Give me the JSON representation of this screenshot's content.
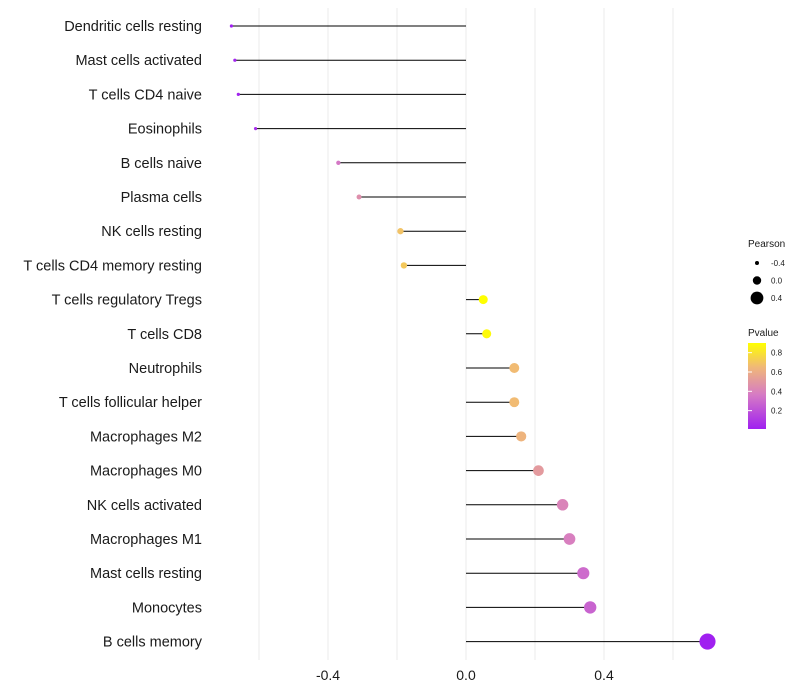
{
  "chart_data": {
    "type": "lollipop",
    "orientation": "horizontal",
    "categories": [
      "Dendritic cells resting",
      "Mast cells activated",
      "T cells CD4 naive",
      "Eosinophils",
      "B cells naive",
      "Plasma cells",
      "NK cells resting",
      "T cells CD4 memory resting",
      "T cells regulatory  Tregs ",
      "T cells CD8",
      "Neutrophils",
      "T cells follicular helper",
      "Macrophages M2",
      "Macrophages M0",
      "NK cells activated",
      "Macrophages M1",
      "Mast cells resting",
      "Monocytes",
      "B cells memory"
    ],
    "pearson": [
      -0.68,
      -0.67,
      -0.66,
      -0.61,
      -0.37,
      -0.31,
      -0.19,
      -0.18,
      0.05,
      0.06,
      0.14,
      0.14,
      0.16,
      0.21,
      0.28,
      0.3,
      0.34,
      0.36,
      0.7
    ],
    "pvalue": [
      0.01,
      0.02,
      0.02,
      0.05,
      0.35,
      0.45,
      0.68,
      0.7,
      0.9,
      0.88,
      0.65,
      0.65,
      0.62,
      0.5,
      0.4,
      0.38,
      0.3,
      0.27,
      0.01
    ],
    "x_ticks": [
      -0.4,
      0.0,
      0.4
    ],
    "x_tick_labels": [
      "-0.4",
      "0.0",
      "0.4"
    ],
    "xlim": [
      -0.7,
      0.72
    ],
    "xlabel": "",
    "ylabel": "",
    "grid": true,
    "legend": {
      "placement": "right",
      "size_title": "Pearson",
      "size_values": [
        -0.4,
        0.0,
        0.4
      ],
      "size_labels": [
        "-0.4",
        "0.0",
        "0.4"
      ],
      "color_title": "Pvalue",
      "color_values": [
        0.2,
        0.4,
        0.6,
        0.8
      ],
      "color_labels": [
        "0.2",
        "0.4",
        "0.6",
        "0.8"
      ],
      "color_range": [
        0.01,
        0.9
      ]
    },
    "colors": {
      "low": "#a020f0",
      "mid": "#d67bc4",
      "high_mid": "#f0b878",
      "high": "#ffff00",
      "stem": "#000000",
      "grid": "#ebebeb"
    }
  }
}
